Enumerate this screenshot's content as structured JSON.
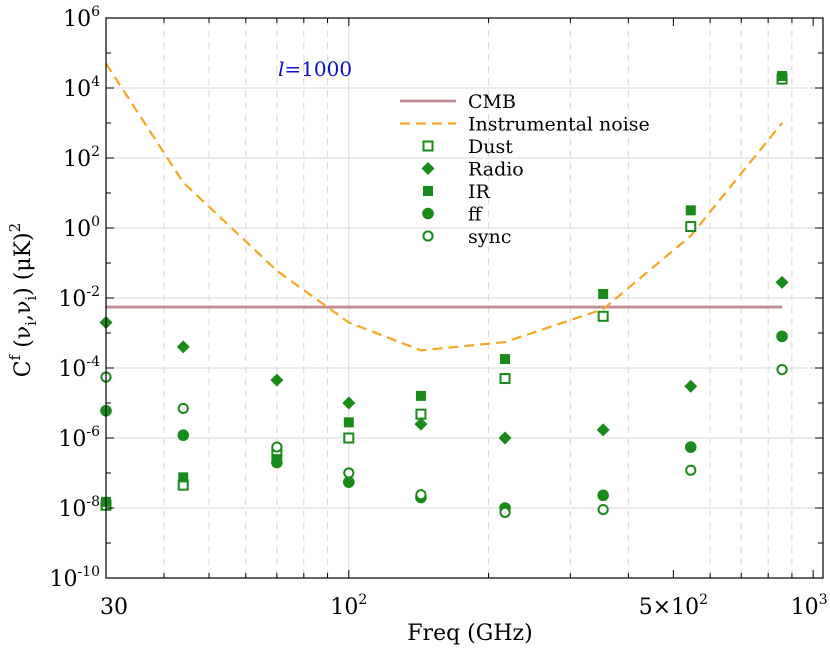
{
  "chart_data": {
    "type": "scatter",
    "x_scale": "log",
    "y_scale": "log",
    "xlim": [
      30,
      1050
    ],
    "ylim": [
      1e-10,
      1000000.0
    ],
    "xlabel": "Freq (GHz)",
    "ylabel": {
      "base": "C",
      "sup": "f",
      "args": " (ν",
      "sub1": "i",
      "mid": ",ν",
      "sub2": "i",
      "close": ") (μK)",
      "sup2": "2"
    },
    "annotation": {
      "italic": "l",
      "rest": "=1000"
    },
    "x_ticks": [
      {
        "value": 30,
        "mantissa": "30",
        "exp": ""
      },
      {
        "value": 100,
        "mantissa": "10",
        "exp": "2"
      },
      {
        "value": 500,
        "mantissa": "5×10",
        "exp": "2"
      },
      {
        "value": 1000,
        "mantissa": "10",
        "exp": "3"
      }
    ],
    "x_minor_ticks": [
      40,
      50,
      60,
      70,
      80,
      90,
      200,
      300,
      400,
      600,
      700,
      800,
      900
    ],
    "y_ticks": [
      {
        "value": 1000000.0,
        "exp": "6"
      },
      {
        "value": 10000.0,
        "exp": "4"
      },
      {
        "value": 100.0,
        "exp": "2"
      },
      {
        "value": 1,
        "exp": "0"
      },
      {
        "value": 0.01,
        "exp": "-2"
      },
      {
        "value": 0.0001,
        "exp": "-4"
      },
      {
        "value": 1e-06,
        "exp": "-6"
      },
      {
        "value": 1e-08,
        "exp": "-8"
      },
      {
        "value": 1e-10,
        "exp": "-10"
      }
    ],
    "grid": true,
    "legend_position": "top-center",
    "series": [
      {
        "name": "CMB",
        "kind": "line",
        "style": "solid",
        "color": "#c08c94",
        "x": [
          30,
          857
        ],
        "y": [
          0.0055,
          0.0055
        ]
      },
      {
        "name": "Instrumental noise",
        "kind": "line",
        "style": "dashed",
        "color": "#f5a623",
        "x": [
          30,
          44,
          70,
          100,
          143,
          217,
          353,
          545,
          857
        ],
        "y": [
          50000,
          20,
          0.06,
          0.002,
          0.00032,
          0.00055,
          0.0048,
          0.6,
          1000
        ]
      },
      {
        "name": "Dust",
        "kind": "marker",
        "marker": "open-square",
        "color": "#1a8a1a",
        "x": [
          30,
          44,
          70,
          100,
          143,
          217,
          353,
          545,
          857
        ],
        "y": [
          1.2e-08,
          4.5e-08,
          3.5e-07,
          1e-06,
          4.8e-06,
          5e-05,
          0.003,
          1.1,
          18000
        ]
      },
      {
        "name": "Radio",
        "kind": "marker",
        "marker": "diamond",
        "color": "#1a8a1a",
        "x": [
          30,
          44,
          70,
          100,
          143,
          217,
          353,
          545,
          857
        ],
        "y": [
          0.002,
          0.0004,
          4.5e-05,
          1e-05,
          2.5e-06,
          1e-06,
          1.7e-06,
          3e-05,
          0.028
        ]
      },
      {
        "name": "IR",
        "kind": "marker",
        "marker": "filled-square",
        "color": "#1a8a1a",
        "x": [
          30,
          44,
          70,
          100,
          143,
          217,
          353,
          545,
          857
        ],
        "y": [
          1.5e-08,
          7.5e-08,
          2.5e-07,
          2.8e-06,
          1.6e-05,
          0.00018,
          0.013,
          3.2,
          22000
        ]
      },
      {
        "name": "ff",
        "kind": "marker",
        "marker": "filled-circle",
        "color": "#1a8a1a",
        "x": [
          30,
          44,
          70,
          100,
          143,
          217,
          353,
          545,
          857
        ],
        "y": [
          6e-06,
          1.2e-06,
          2e-07,
          5.5e-08,
          2e-08,
          1e-08,
          2.3e-08,
          5.5e-07,
          0.0008
        ]
      },
      {
        "name": "sync",
        "kind": "marker",
        "marker": "open-circle",
        "color": "#1a8a1a",
        "x": [
          30,
          44,
          70,
          100,
          143,
          217,
          353,
          545,
          857
        ],
        "y": [
          5.5e-05,
          7e-06,
          5.5e-07,
          1e-07,
          2.4e-08,
          7.5e-09,
          9e-09,
          1.2e-07,
          9e-05
        ]
      }
    ]
  }
}
